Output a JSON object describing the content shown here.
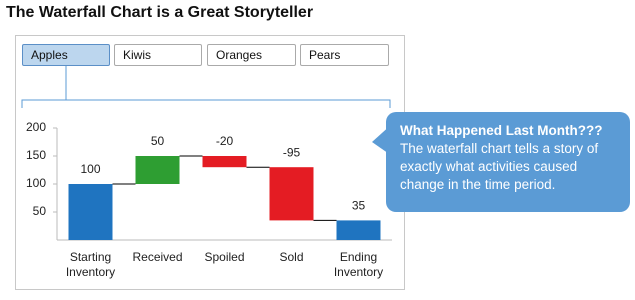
{
  "title": "The Waterfall Chart is a Great Storyteller",
  "tabs": [
    "Apples",
    "Kiwis",
    "Oranges",
    "Pears"
  ],
  "callout": {
    "heading": "What Happened Last Month???",
    "body": "The waterfall chart tells a story of exactly what activities caused change in the time period."
  },
  "chart_data": {
    "type": "waterfall",
    "categories": [
      "Starting Inventory",
      "Received",
      "Spoiled",
      "Sold",
      "Ending Inventory"
    ],
    "values": [
      100,
      50,
      -20,
      -95,
      35
    ],
    "is_total": [
      true,
      false,
      false,
      false,
      true
    ],
    "colors": [
      "#1f74c0",
      "#2e9e32",
      "#e41c23",
      "#e41c23",
      "#1f74c0"
    ],
    "ylim": [
      0,
      200
    ],
    "yticks": [
      50,
      100,
      150,
      200
    ]
  }
}
